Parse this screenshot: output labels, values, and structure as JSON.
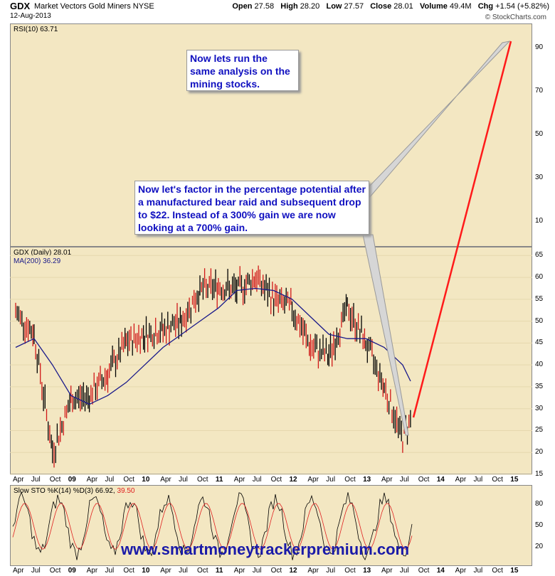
{
  "header": {
    "symbol": "GDX",
    "name": "Market Vectors Gold Miners",
    "exchange": "NYSE",
    "date": "12-Aug-2013",
    "open_label": "Open",
    "open": "27.58",
    "high_label": "High",
    "high": "28.20",
    "low_label": "Low",
    "low": "27.57",
    "close_label": "Close",
    "close": "28.01",
    "volume_label": "Volume",
    "volume": "49.4M",
    "chg_label": "Chg",
    "chg": "+1.54 (+5.82%)",
    "brand": "© StockCharts.com"
  },
  "rsi_panel": {
    "label": "RSI(10) 63.71",
    "yticks": [
      "90",
      "70",
      "50",
      "30",
      "10"
    ]
  },
  "price_panel": {
    "label": "GDX (Daily) 28.01",
    "ma_label": "MA(200) 36.29",
    "yticks": [
      "65",
      "60",
      "55",
      "50",
      "45",
      "40",
      "35",
      "30",
      "25",
      "20",
      "15"
    ]
  },
  "stoch_panel": {
    "label": "Slow STO %K(14) %D(3) 66.92, ",
    "label_d": "39.50",
    "yticks": [
      "80",
      "50",
      "20"
    ]
  },
  "x_axis_labels": [
    "Apr",
    "Jul",
    "Oct",
    "09",
    "Apr",
    "Jul",
    "Oct",
    "10",
    "Apr",
    "Jul",
    "Oct",
    "11",
    "Apr",
    "Jul",
    "Oct",
    "12",
    "Apr",
    "Jul",
    "Oct",
    "13",
    "Apr",
    "Jul",
    "Oct",
    "14",
    "Apr",
    "Jul",
    "Oct",
    "15"
  ],
  "callouts": {
    "first": "Now lets run the same analysis on the mining stocks.",
    "second": "Now let's factor in the percentage potential after a manufactured bear raid and subsequent drop to $22. Instead of a 300% gain we are now looking at a 700% gain."
  },
  "website": "www.smartmoneytrackerpremium.com",
  "colors": {
    "panel_bg": "#f3e7c2",
    "ma": "#1a1a8a",
    "projection": "#ff1a1a",
    "callout_text": "#1010c0",
    "stoch_d": "#e02020"
  },
  "chart_data": {
    "type": "line",
    "title": "GDX Market Vectors Gold Miners NYSE",
    "ylim": [
      15,
      67
    ],
    "x": [
      "Apr 2008",
      "Jul 2008",
      "Oct 2008",
      "Jan 2009",
      "Apr 2009",
      "Jul 2009",
      "Oct 2009",
      "Jan 2010",
      "Apr 2010",
      "Jul 2010",
      "Oct 2010",
      "Jan 2011",
      "Apr 2011",
      "Jul 2011",
      "Oct 2011",
      "Jan 2012",
      "Apr 2012",
      "Jul 2012",
      "Oct 2012",
      "Jan 2013",
      "Apr 2013",
      "Jul 2013",
      "Aug 2013"
    ],
    "series": [
      {
        "name": "GDX (Daily)",
        "values": [
          52,
          47,
          20,
          32,
          33,
          38,
          45,
          47,
          48,
          50,
          57,
          58,
          57,
          60,
          55,
          53,
          44,
          42,
          53,
          45,
          35,
          23,
          28.01
        ]
      },
      {
        "name": "MA(200)",
        "values": [
          44,
          46,
          40,
          33,
          31,
          33,
          36,
          40,
          44,
          47,
          50,
          53,
          57,
          57.5,
          57,
          55,
          51,
          47,
          46,
          46,
          44,
          40,
          36.29
        ]
      }
    ],
    "projection": {
      "x": [
        "Aug 2013",
        "Oct 2014"
      ],
      "values": [
        28,
        93
      ],
      "panel": "RSI scale"
    },
    "projection_target_pct": "700%"
  }
}
